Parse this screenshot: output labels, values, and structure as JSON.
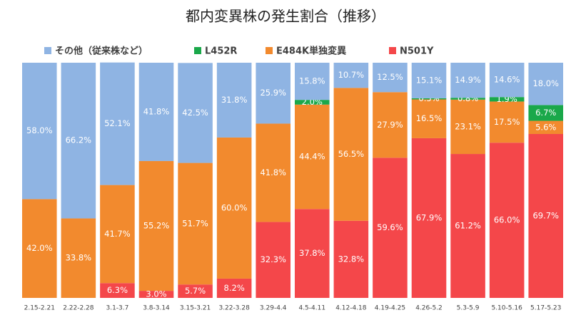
{
  "chart_data": {
    "type": "stacked_bar_100",
    "title": "都内変異株の発生割合（推移）",
    "categories": [
      "2.15-2.21",
      "2.22-2.28",
      "3.1-3.7",
      "3.8-3.14",
      "3.15-3.21",
      "3.22-3.28",
      "3.29-4.4",
      "4.5-4.11",
      "4.12-4.18",
      "4.19-4.25",
      "4.26-5.2",
      "5.3-5.9",
      "5.10-5.16",
      "5.17-5.23"
    ],
    "ylim": [
      0,
      100
    ],
    "legend": "top",
    "series": [
      {
        "name": "その他（従来株など）",
        "color": "#8fb4e3",
        "values": [
          58.0,
          66.2,
          52.1,
          41.8,
          42.5,
          31.8,
          25.9,
          15.8,
          10.7,
          12.5,
          15.1,
          14.9,
          14.6,
          18.0
        ],
        "value_labels": [
          "58.0%",
          "66.2%",
          "52.1%",
          "41.8%",
          "42.5%",
          "31.8%",
          "25.9%",
          "15.8%",
          "10.7%",
          "12.5%",
          "15.1%",
          "14.9%",
          "14.6%",
          "18.0%"
        ]
      },
      {
        "name": "L452R",
        "color": "#1aa84a",
        "values": [
          null,
          null,
          null,
          null,
          null,
          null,
          null,
          2.0,
          null,
          null,
          0.5,
          0.8,
          1.9,
          6.7
        ],
        "value_labels": [
          null,
          null,
          null,
          null,
          null,
          null,
          null,
          "2.0%",
          null,
          null,
          "0.5%",
          "0.8%",
          "1.9%",
          "6.7%"
        ]
      },
      {
        "name": "E484K単独変異",
        "color": "#f28a2e",
        "values": [
          42.0,
          33.8,
          41.7,
          55.2,
          51.7,
          60.0,
          41.8,
          44.4,
          56.5,
          27.9,
          16.5,
          23.1,
          17.5,
          5.6
        ],
        "value_labels": [
          "42.0%",
          "33.8%",
          "41.7%",
          "55.2%",
          "51.7%",
          "60.0%",
          "41.8%",
          "44.4%",
          "56.5%",
          "27.9%",
          "16.5%",
          "23.1%",
          "17.5%",
          "5.6%"
        ]
      },
      {
        "name": "N501Y",
        "color": "#f4474a",
        "values": [
          null,
          null,
          6.3,
          3.0,
          5.7,
          8.2,
          32.3,
          37.8,
          32.8,
          59.6,
          67.9,
          61.2,
          66.0,
          69.7
        ],
        "value_labels": [
          null,
          null,
          "6.3%",
          "3.0%",
          "5.7%",
          "8.2%",
          "32.3%",
          "37.8%",
          "32.8%",
          "59.6%",
          "67.9%",
          "61.2%",
          "66.0%",
          "69.7%"
        ]
      }
    ]
  }
}
